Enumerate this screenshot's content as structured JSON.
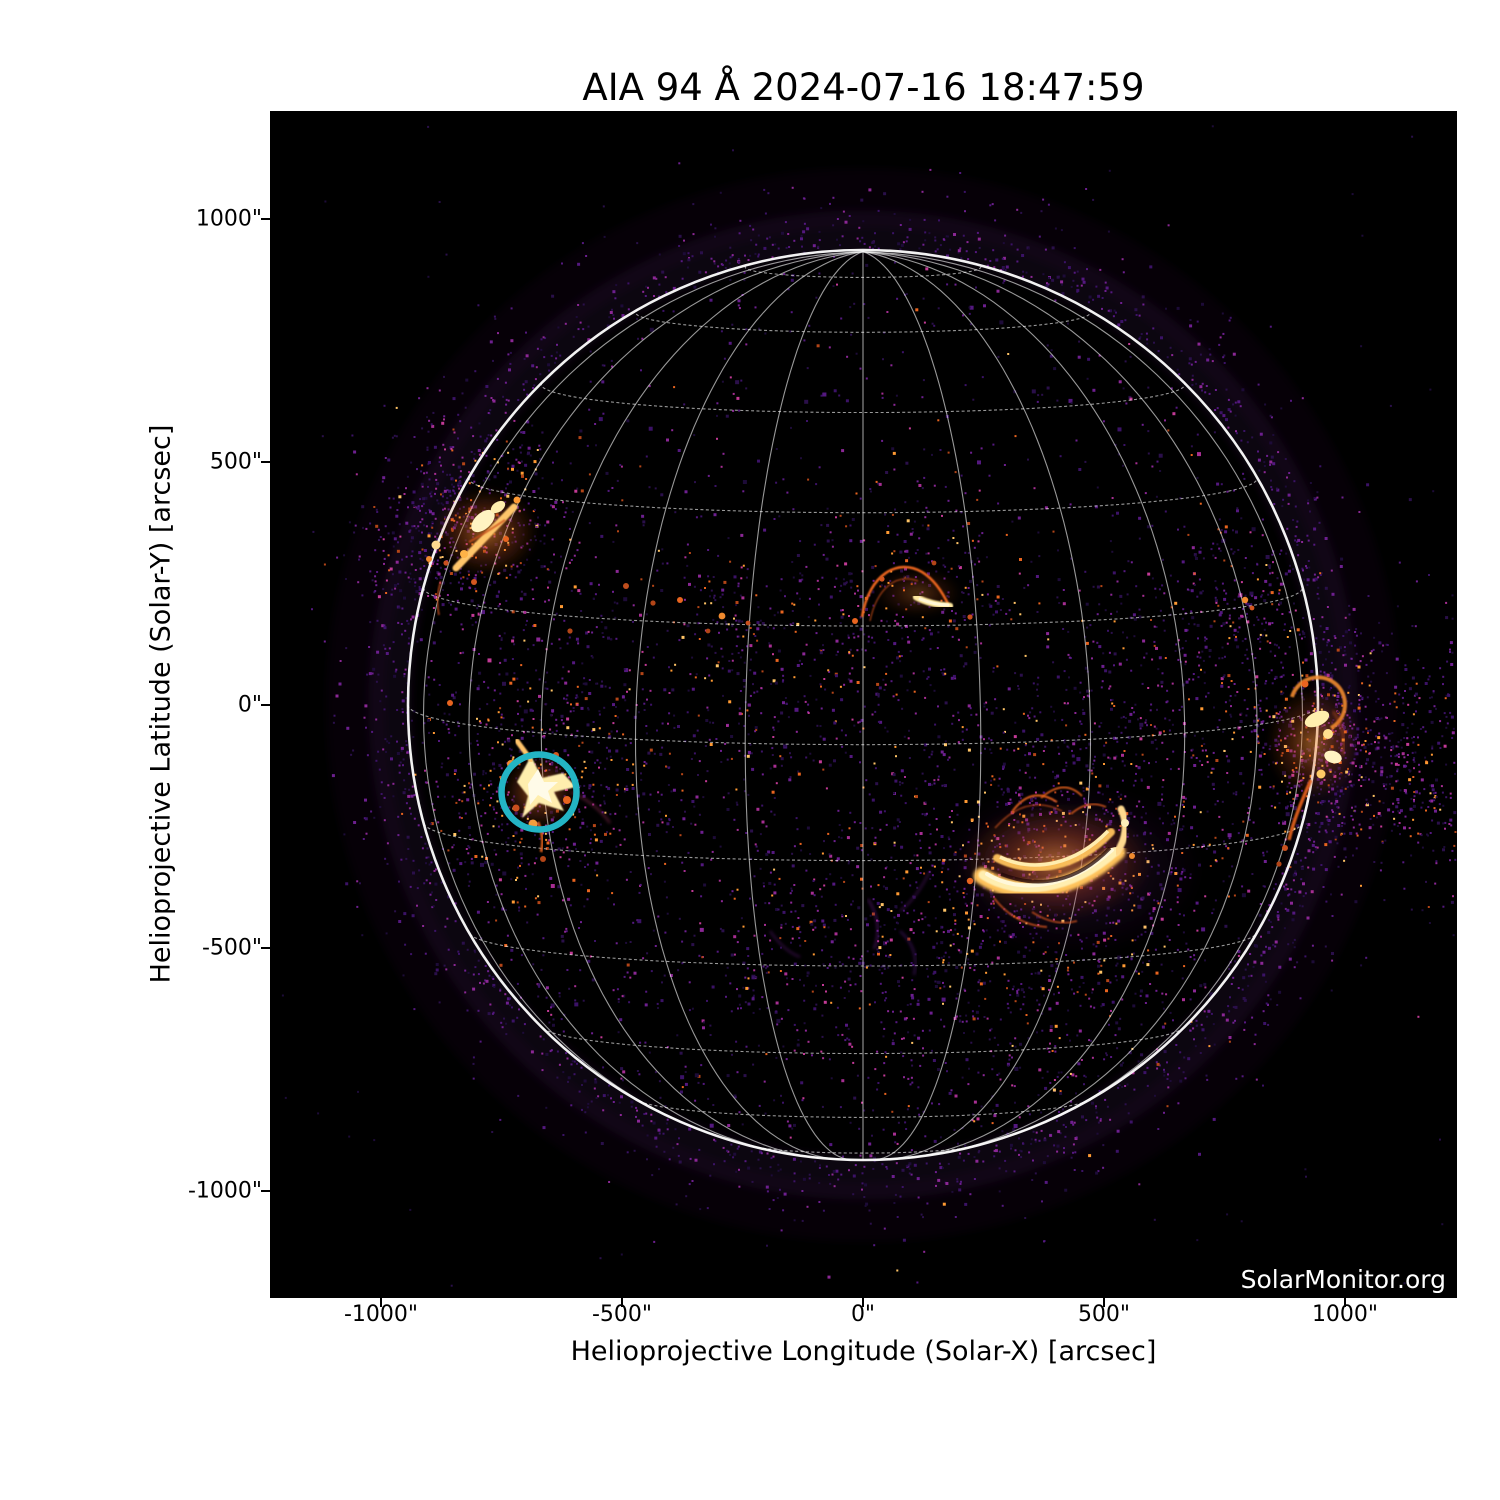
{
  "figure": {
    "title": "AIA 94 Å 2024-07-16 18:47:59",
    "watermark": "SolarMonitor.org",
    "x_axis": {
      "label": "Helioprojective Longitude (Solar-X) [arcsec]",
      "ticks": [
        "-1000\"",
        "-500\"",
        "0\"",
        "500\"",
        "1000\""
      ]
    },
    "y_axis": {
      "label": "Helioprojective Latitude (Solar-Y) [arcsec]",
      "ticks": [
        "1000\"",
        "500\"",
        "0\"",
        "-500\"",
        "-1000\""
      ]
    }
  },
  "chart_data": {
    "type": "heatmap",
    "title": "AIA 94 Å 2024-07-16 18:47:59",
    "xlabel": "Helioprojective Longitude (Solar-X) [arcsec]",
    "ylabel": "Helioprojective Latitude (Solar-Y) [arcsec]",
    "xlim": [
      -1205,
      1205
    ],
    "ylim": [
      -1205,
      1205
    ],
    "x_ticks": [
      -1000,
      -500,
      0,
      500,
      1000
    ],
    "y_ticks": [
      -1000,
      -500,
      0,
      500,
      1000
    ],
    "grid_on": true,
    "legend_position": "none",
    "heliographic_grid_spacing_deg": 15,
    "solar_disk_radius_arcsec_est": 944,
    "colormap": "dark background, purple to orange-yellow EUV emission",
    "features": [
      {
        "name": "active region",
        "x_arcsec": -780,
        "y_arcsec": 360,
        "brightness": "bright"
      },
      {
        "name": "active region arc",
        "x_arcsec": 100,
        "y_arcsec": 240,
        "brightness": "moderate"
      },
      {
        "name": "active region (flare site, circled)",
        "x_arcsec": -672,
        "y_arcsec": -180,
        "brightness": "bright",
        "marker": "cyan circle",
        "marker_radius_arcsec": 78
      },
      {
        "name": "active region (sigmoid)",
        "x_arcsec": 395,
        "y_arcsec": -330,
        "brightness": "very bright"
      },
      {
        "name": "active region (west limb)",
        "x_arcsec": 930,
        "y_arcsec": -75,
        "brightness": "bright"
      }
    ]
  },
  "colors": {
    "background": "#000000",
    "flare_marker": "#23b4c4",
    "limb": "#ffffff",
    "grid": "#cccccc",
    "emission_core": "#fff3c2",
    "emission_mid": "#f08a2e",
    "emission_faint": "#6d1f8f"
  }
}
